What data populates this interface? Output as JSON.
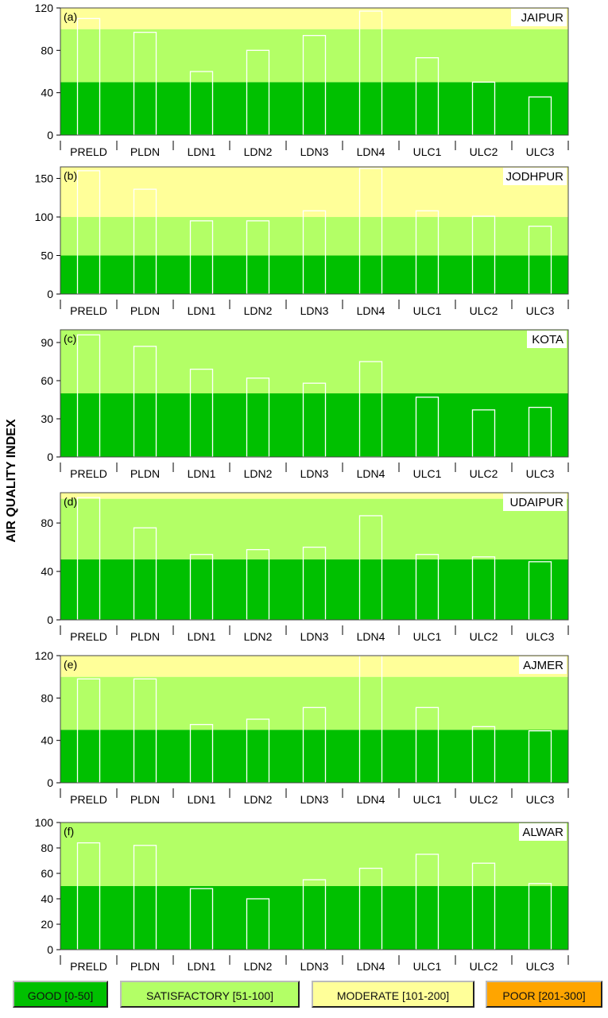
{
  "chart_data": {
    "type": "bar",
    "ylabel": "AIR QUALITY INDEX",
    "categories": [
      "PRELD",
      "PLDN",
      "LDN1",
      "LDN2",
      "LDN3",
      "LDN4",
      "ULC1",
      "ULC2",
      "ULC3"
    ],
    "bands": [
      {
        "name": "GOOD",
        "range": [
          0,
          50
        ],
        "color": "#00c000"
      },
      {
        "name": "SATISFACTORY",
        "range": [
          51,
          100
        ],
        "color": "#b3ff66"
      },
      {
        "name": "MODERATE",
        "range": [
          101,
          200
        ],
        "color": "#ffff99"
      },
      {
        "name": "POOR",
        "range": [
          201,
          300
        ],
        "color": "#ffa500"
      }
    ],
    "panels": [
      {
        "tag": "(a)",
        "city": "JAIPUR",
        "ylim": [
          0,
          120
        ],
        "yticks": [
          0,
          40,
          80,
          120
        ],
        "values": [
          110,
          97,
          60,
          80,
          94,
          117,
          73,
          50,
          36
        ]
      },
      {
        "tag": "(b)",
        "city": "JODHPUR",
        "ylim": [
          0,
          165
        ],
        "yticks": [
          0,
          50,
          100,
          150
        ],
        "values": [
          160,
          136,
          95,
          95,
          108,
          163,
          108,
          101,
          88
        ]
      },
      {
        "tag": "(c)",
        "city": "KOTA",
        "ylim": [
          0,
          100
        ],
        "yticks": [
          0,
          30,
          60,
          90
        ],
        "values": [
          96,
          87,
          69,
          62,
          58,
          75,
          47,
          37,
          39
        ]
      },
      {
        "tag": "(d)",
        "city": "UDAIPUR",
        "ylim": [
          0,
          105
        ],
        "yticks": [
          0,
          40,
          80
        ],
        "values": [
          101,
          76,
          54,
          58,
          60,
          86,
          54,
          52,
          48
        ]
      },
      {
        "tag": "(e)",
        "city": "AJMER",
        "ylim": [
          0,
          120
        ],
        "yticks": [
          0,
          40,
          80,
          120
        ],
        "values": [
          98,
          98,
          55,
          60,
          71,
          120,
          71,
          53,
          49
        ]
      },
      {
        "tag": "(f)",
        "city": "ALWAR",
        "ylim": [
          0,
          100
        ],
        "yticks": [
          0,
          20,
          40,
          60,
          80,
          100
        ],
        "values": [
          84,
          82,
          48,
          40,
          55,
          64,
          75,
          68,
          52
        ]
      }
    ]
  },
  "legend": {
    "good": "GOOD [0-50]",
    "satisfactory": "SATISFACTORY [51-100]",
    "moderate": "MODERATE [101-200]",
    "poor": "POOR [201-300]"
  }
}
